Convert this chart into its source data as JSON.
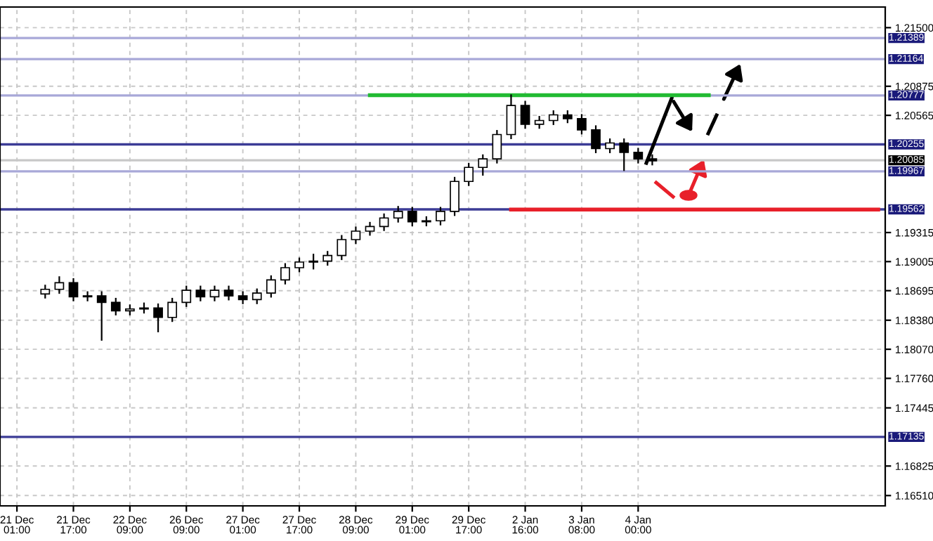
{
  "chart_data": {
    "type": "candlestick",
    "categories": [
      "21 Dec 01:00",
      null,
      null,
      null,
      "21 Dec 17:00",
      null,
      null,
      null,
      "22 Dec 09:00",
      null,
      null,
      null,
      "26 Dec 09:00",
      null,
      null,
      null,
      "27 Dec 01:00",
      null,
      null,
      null,
      "27 Dec 17:00",
      null,
      null,
      null,
      "28 Dec 09:00",
      null,
      null,
      null,
      "29 Dec 01:00",
      null,
      null,
      null,
      "29 Dec 17:00",
      null,
      null,
      null,
      "2 Jan 16:00",
      null,
      null,
      null,
      "3 Jan 08:00",
      null,
      null,
      null,
      "4 Jan 00:00",
      null,
      null,
      null,
      null,
      null,
      null,
      null,
      null,
      null,
      null,
      null,
      null,
      null,
      null,
      null,
      null,
      null
    ],
    "ohlc": [
      null,
      null,
      [
        1.1866,
        1.1875,
        1.1862,
        1.1871
      ],
      [
        1.1871,
        1.1884,
        1.1867,
        1.1878
      ],
      [
        1.1878,
        1.1882,
        1.1859,
        1.1863
      ],
      [
        1.1863,
        1.1868,
        1.1859,
        1.1864
      ],
      [
        1.1864,
        1.1868,
        1.1817,
        1.1857
      ],
      [
        1.1857,
        1.1861,
        1.1844,
        1.1848
      ],
      [
        1.1848,
        1.1854,
        1.1844,
        1.185
      ],
      [
        1.185,
        1.1856,
        1.1846,
        1.1851
      ],
      [
        1.1851,
        1.1855,
        1.1826,
        1.1841
      ],
      [
        1.1841,
        1.1861,
        1.1837,
        1.1857
      ],
      [
        1.1857,
        1.1874,
        1.1853,
        1.187
      ],
      [
        1.187,
        1.1874,
        1.1859,
        1.1863
      ],
      [
        1.1863,
        1.1874,
        1.1859,
        1.187
      ],
      [
        1.187,
        1.1874,
        1.186,
        1.1864
      ],
      [
        1.1864,
        1.1868,
        1.1856,
        1.186
      ],
      [
        1.186,
        1.1871,
        1.1856,
        1.1867
      ],
      [
        1.1867,
        1.1885,
        1.1863,
        1.1881
      ],
      [
        1.1881,
        1.1898,
        1.1877,
        1.1894
      ],
      [
        1.1894,
        1.1904,
        1.189,
        1.19
      ],
      [
        1.19,
        1.1908,
        1.1893,
        1.1901
      ],
      [
        1.1901,
        1.1911,
        1.1897,
        1.1907
      ],
      [
        1.1907,
        1.1928,
        1.1903,
        1.1924
      ],
      [
        1.1924,
        1.1937,
        1.192,
        1.1933
      ],
      [
        1.1933,
        1.1942,
        1.1929,
        1.1938
      ],
      [
        1.1938,
        1.1951,
        1.1934,
        1.1947
      ],
      [
        1.1947,
        1.1959,
        1.1943,
        1.1954
      ],
      [
        1.1954,
        1.1958,
        1.1939,
        1.1943
      ],
      [
        1.1943,
        1.1948,
        1.1939,
        1.1944
      ],
      [
        1.1944,
        1.1958,
        1.194,
        1.1954
      ],
      [
        1.1954,
        1.199,
        1.195,
        1.1986
      ],
      [
        1.1986,
        1.2005,
        1.1982,
        1.2001
      ],
      [
        1.2001,
        1.2014,
        1.1993,
        1.201
      ],
      [
        1.201,
        1.204,
        1.2006,
        1.2036
      ],
      [
        1.2036,
        1.2078,
        1.2032,
        1.2067
      ],
      [
        1.2067,
        1.2071,
        1.2043,
        1.2047
      ],
      [
        1.2047,
        1.2055,
        1.2043,
        1.2051
      ],
      [
        1.2051,
        1.2061,
        1.2047,
        1.2057
      ],
      [
        1.2057,
        1.2061,
        1.2049,
        1.2053
      ],
      [
        1.2053,
        1.2057,
        1.2037,
        1.2041
      ],
      [
        1.2041,
        1.2045,
        1.2017,
        1.2021
      ],
      [
        1.2021,
        1.2031,
        1.2017,
        1.2027
      ],
      [
        1.2027,
        1.2031,
        1.1998,
        1.2017
      ],
      [
        1.2017,
        1.2021,
        1.2006,
        1.201
      ],
      [
        1.201,
        1.2014,
        1.2004,
        1.2008
      ],
      null,
      null,
      null,
      null,
      null,
      null,
      null,
      null,
      null,
      null,
      null,
      null,
      null,
      null,
      null,
      null
    ],
    "series": [
      {
        "type": "line",
        "color": "#22bb33",
        "values": [
          null,
          null,
          null,
          null,
          null,
          null,
          null,
          null,
          null,
          null,
          null,
          null,
          null,
          null,
          null,
          null,
          null,
          null,
          null,
          null,
          null,
          null,
          null,
          null,
          null,
          1.2078,
          1.2078,
          1.2078,
          1.2078,
          1.2078,
          1.2078,
          1.2078,
          1.2078,
          1.2078,
          1.2078,
          1.2078,
          1.2078,
          1.2078,
          1.2078,
          1.2078,
          1.2078,
          1.2078,
          1.2078,
          1.2078,
          1.2078,
          1.2078,
          1.2078,
          1.2078,
          1.2078,
          1.2078,
          null,
          null,
          null,
          null,
          null,
          null,
          null,
          null,
          null,
          null,
          null,
          null
        ]
      },
      {
        "type": "line",
        "color": "#e8202a",
        "values": [
          null,
          null,
          null,
          null,
          null,
          null,
          null,
          null,
          null,
          null,
          null,
          null,
          null,
          null,
          null,
          null,
          null,
          null,
          null,
          null,
          null,
          null,
          null,
          null,
          null,
          null,
          null,
          null,
          null,
          null,
          null,
          null,
          null,
          null,
          null,
          1.1956,
          1.1956,
          1.1956,
          1.1956,
          1.1956,
          1.1956,
          1.1956,
          1.1956,
          1.1956,
          1.1956,
          1.1956,
          1.1956,
          1.1956,
          1.1956,
          1.1956,
          1.1956,
          1.1956,
          1.1956,
          1.1956,
          1.1956,
          1.1956,
          1.1956,
          1.1956,
          1.1956,
          1.1956,
          1.1956,
          1.1956
        ]
      }
    ],
    "ylim": [
      1.164,
      1.2172
    ],
    "yticks": [
      {
        "value": 1.215,
        "label": "1.21500"
      },
      {
        "value": 1.20875,
        "label": "1.20875"
      },
      {
        "value": 1.20565,
        "label": "1.20565"
      },
      {
        "value": 1.19315,
        "label": "1.19315"
      },
      {
        "value": 1.19005,
        "label": "1.19005"
      },
      {
        "value": 1.18695,
        "label": "1.18695"
      },
      {
        "value": 1.1838,
        "label": "1.18380"
      },
      {
        "value": 1.1807,
        "label": "1.18070"
      },
      {
        "value": 1.1776,
        "label": "1.17760"
      },
      {
        "value": 1.17445,
        "label": "1.17445"
      },
      {
        "value": 1.16825,
        "label": "1.16825"
      },
      {
        "value": 1.1651,
        "label": "1.16510"
      }
    ],
    "ref_lines": [
      {
        "axis": "y",
        "value": 1.21389,
        "label": "1.21389",
        "color": "#a8a8d8"
      },
      {
        "axis": "y",
        "value": 1.21164,
        "label": "1.21164",
        "color": "#a8a8d8"
      },
      {
        "axis": "y",
        "value": 1.20777,
        "label": "1.20777",
        "color": "#a8a8d8"
      },
      {
        "axis": "y",
        "value": 1.20255,
        "label": "1.20255",
        "color": "#3c3c96"
      },
      {
        "axis": "y",
        "value": 1.20085,
        "label": "1.20085",
        "color": "#c8c8c8"
      },
      {
        "axis": "y",
        "value": 1.19967,
        "label": "1.19967",
        "color": "#a8a8d8"
      },
      {
        "axis": "y",
        "value": 1.19562,
        "label": "1.19562",
        "color": "#3c3c96"
      },
      {
        "axis": "y",
        "value": 1.17135,
        "label": "1.17135",
        "color": "#3c3c96"
      }
    ],
    "grid": true
  }
}
